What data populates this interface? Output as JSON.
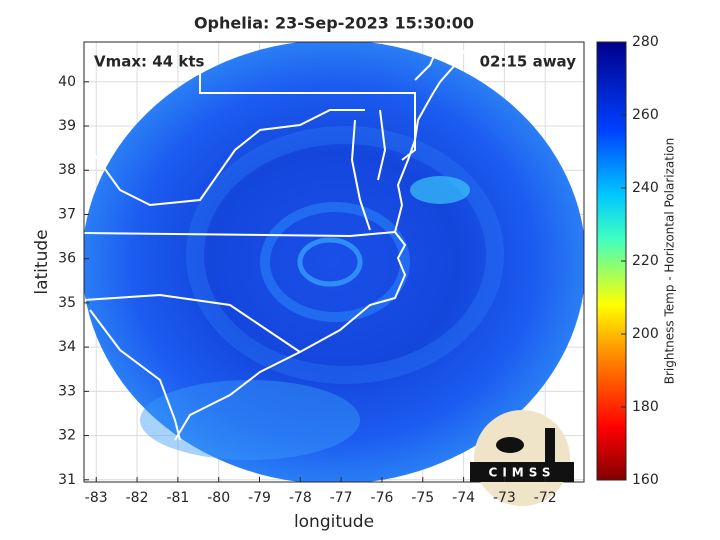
{
  "chart_data": {
    "type": "map",
    "title": "Ophelia: 23-Sep-2023 15:30:00",
    "annotations": [
      "Vmax: 44 kts",
      "02:15 away"
    ],
    "xlabel": "longitude",
    "ylabel": "latitude",
    "xlim": [
      -83.3,
      -71.05
    ],
    "ylim": [
      30.95,
      40.9
    ],
    "xticks": [
      -83,
      -82,
      -81,
      -80,
      -79,
      -78,
      -77,
      -76,
      -75,
      -74,
      -73,
      -72
    ],
    "yticks": [
      31,
      32,
      33,
      34,
      35,
      36,
      37,
      38,
      39,
      40
    ],
    "grid": true,
    "colorbar": {
      "label": "Brightness Temp - Horizontal Polarization",
      "lim": [
        160,
        280
      ],
      "ticks": [
        160,
        180,
        200,
        220,
        240,
        260,
        280
      ]
    }
  },
  "logo": "CIMSS"
}
